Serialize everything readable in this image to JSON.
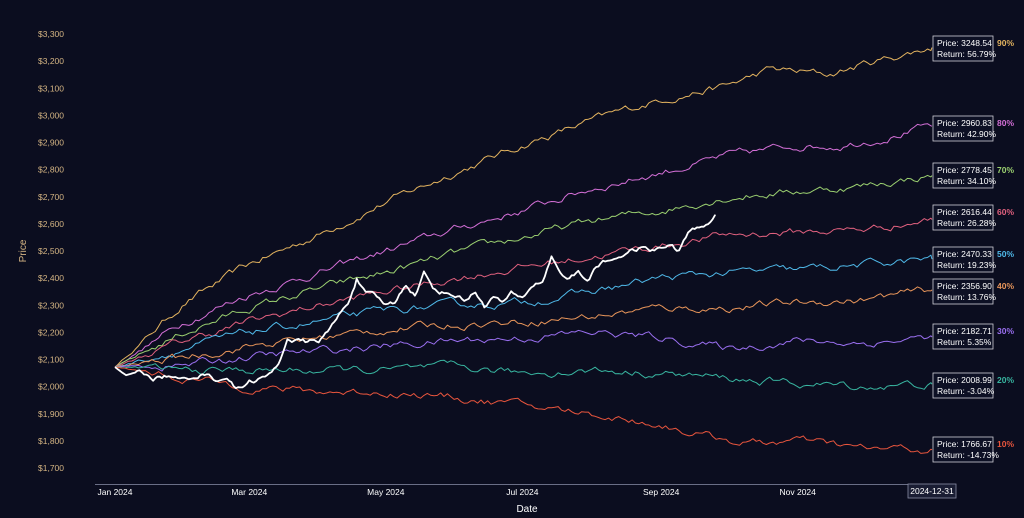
{
  "chart_data": {
    "type": "line",
    "title": "",
    "xlabel": "Date",
    "ylabel": "Price",
    "ylim": [
      1650,
      3330
    ],
    "y_ticks": [
      1700,
      1800,
      1900,
      2000,
      2100,
      2200,
      2300,
      2400,
      2500,
      2600,
      2700,
      2800,
      2900,
      3000,
      3100,
      3200,
      3300
    ],
    "y_tick_labels": [
      "$1,700",
      "$1,800",
      "$1,900",
      "$2,000",
      "$2,100",
      "$2,200",
      "$2,300",
      "$2,400",
      "$2,500",
      "$2,600",
      "$2,700",
      "$2,800",
      "$2,900",
      "$3,000",
      "$3,100",
      "$3,200",
      "$3,300"
    ],
    "x_range": [
      "2024-01-01",
      "2024-12-31"
    ],
    "x_ticks": [
      {
        "date": "2024-01-01",
        "label": "Jan 2024"
      },
      {
        "date": "2024-03-01",
        "label": "Mar 2024"
      },
      {
        "date": "2024-05-01",
        "label": "May 2024"
      },
      {
        "date": "2024-07-01",
        "label": "Jul 2024"
      },
      {
        "date": "2024-09-01",
        "label": "Sep 2024"
      },
      {
        "date": "2024-11-01",
        "label": "Nov 2024"
      }
    ],
    "end_date_label": "2024-12-31",
    "start_price": 2072,
    "end_date": "2024-12-31",
    "grid": false,
    "percentiles": [
      {
        "label": "90%",
        "color": "#e3b35f",
        "end_price": 3248.54,
        "price_text": "Price: 3248.54",
        "return_text": "Return: 56.79%",
        "waypoints": [
          [
            "2024-01-01",
            2072
          ],
          [
            "2024-02-01",
            2310
          ],
          [
            "2024-03-01",
            2450
          ],
          [
            "2024-04-01",
            2560
          ],
          [
            "2024-05-01",
            2680
          ],
          [
            "2024-06-01",
            2790
          ],
          [
            "2024-07-01",
            2890
          ],
          [
            "2024-08-01",
            2980
          ],
          [
            "2024-09-01",
            3060
          ],
          [
            "2024-10-01",
            3110
          ],
          [
            "2024-10-20",
            3170
          ],
          [
            "2024-11-15",
            3150
          ],
          [
            "2024-12-01",
            3190
          ],
          [
            "2024-12-31",
            3250
          ]
        ]
      },
      {
        "label": "80%",
        "color": "#d36fd6",
        "end_price": 2960.83,
        "price_text": "Price: 2960.83",
        "return_text": "Return: 42.90%",
        "waypoints": [
          [
            "2024-01-01",
            2072
          ],
          [
            "2024-02-01",
            2240
          ],
          [
            "2024-03-01",
            2340
          ],
          [
            "2024-04-01",
            2420
          ],
          [
            "2024-05-01",
            2500
          ],
          [
            "2024-06-01",
            2580
          ],
          [
            "2024-07-01",
            2650
          ],
          [
            "2024-08-01",
            2730
          ],
          [
            "2024-09-01",
            2790
          ],
          [
            "2024-10-01",
            2850
          ],
          [
            "2024-11-01",
            2890
          ],
          [
            "2024-11-20",
            2890
          ],
          [
            "2024-12-10",
            2920
          ],
          [
            "2024-12-31",
            2960
          ]
        ]
      },
      {
        "label": "70%",
        "color": "#9bd070",
        "end_price": 2778.45,
        "price_text": "Price: 2778.45",
        "return_text": "Return: 34.10%",
        "waypoints": [
          [
            "2024-01-01",
            2072
          ],
          [
            "2024-02-01",
            2200
          ],
          [
            "2024-03-01",
            2290
          ],
          [
            "2024-04-01",
            2360
          ],
          [
            "2024-05-01",
            2420
          ],
          [
            "2024-06-01",
            2490
          ],
          [
            "2024-07-01",
            2550
          ],
          [
            "2024-08-01",
            2610
          ],
          [
            "2024-09-01",
            2650
          ],
          [
            "2024-10-01",
            2700
          ],
          [
            "2024-11-01",
            2720
          ],
          [
            "2024-12-01",
            2740
          ],
          [
            "2024-12-31",
            2778
          ]
        ]
      },
      {
        "label": "60%",
        "color": "#e0607e",
        "end_price": 2616.44,
        "price_text": "Price: 2616.44",
        "return_text": "Return: 26.28%",
        "waypoints": [
          [
            "2024-01-01",
            2072
          ],
          [
            "2024-02-01",
            2170
          ],
          [
            "2024-03-01",
            2240
          ],
          [
            "2024-04-01",
            2300
          ],
          [
            "2024-05-01",
            2350
          ],
          [
            "2024-06-01",
            2400
          ],
          [
            "2024-07-01",
            2440
          ],
          [
            "2024-08-01",
            2480
          ],
          [
            "2024-09-01",
            2520
          ],
          [
            "2024-10-01",
            2560
          ],
          [
            "2024-11-01",
            2570
          ],
          [
            "2024-12-01",
            2580
          ],
          [
            "2024-12-31",
            2616
          ]
        ]
      },
      {
        "label": "50%",
        "color": "#4fb8e8",
        "end_price": 2470.33,
        "price_text": "Price: 2470.33",
        "return_text": "Return: 19.23%",
        "waypoints": [
          [
            "2024-01-01",
            2072
          ],
          [
            "2024-02-01",
            2140
          ],
          [
            "2024-03-01",
            2200
          ],
          [
            "2024-04-01",
            2240
          ],
          [
            "2024-05-01",
            2280
          ],
          [
            "2024-06-01",
            2300
          ],
          [
            "2024-07-01",
            2310
          ],
          [
            "2024-08-01",
            2350
          ],
          [
            "2024-09-01",
            2400
          ],
          [
            "2024-10-01",
            2420
          ],
          [
            "2024-11-01",
            2430
          ],
          [
            "2024-12-01",
            2450
          ],
          [
            "2024-12-31",
            2470
          ]
        ]
      },
      {
        "label": "40%",
        "color": "#e8955a",
        "end_price": 2356.9,
        "price_text": "Price: 2356.90",
        "return_text": "Return: 13.76%",
        "waypoints": [
          [
            "2024-01-01",
            2072
          ],
          [
            "2024-02-01",
            2110
          ],
          [
            "2024-03-01",
            2150
          ],
          [
            "2024-04-01",
            2180
          ],
          [
            "2024-05-01",
            2210
          ],
          [
            "2024-06-01",
            2230
          ],
          [
            "2024-07-01",
            2240
          ],
          [
            "2024-08-01",
            2260
          ],
          [
            "2024-09-01",
            2290
          ],
          [
            "2024-10-01",
            2290
          ],
          [
            "2024-11-01",
            2310
          ],
          [
            "2024-12-01",
            2320
          ],
          [
            "2024-12-31",
            2357
          ]
        ]
      },
      {
        "label": "30%",
        "color": "#9a6ff0",
        "end_price": 2182.71,
        "price_text": "Price: 2182.71",
        "return_text": "Return: 5.35%",
        "waypoints": [
          [
            "2024-01-01",
            2072
          ],
          [
            "2024-02-01",
            2080
          ],
          [
            "2024-03-01",
            2110
          ],
          [
            "2024-04-01",
            2130
          ],
          [
            "2024-05-01",
            2150
          ],
          [
            "2024-06-01",
            2170
          ],
          [
            "2024-07-01",
            2180
          ],
          [
            "2024-08-01",
            2200
          ],
          [
            "2024-09-01",
            2180
          ],
          [
            "2024-10-01",
            2140
          ],
          [
            "2024-11-01",
            2170
          ],
          [
            "2024-12-01",
            2160
          ],
          [
            "2024-12-31",
            2183
          ]
        ]
      },
      {
        "label": "20%",
        "color": "#38b5a0",
        "end_price": 2008.99,
        "price_text": "Price: 2008.99",
        "return_text": "Return: -3.04%",
        "waypoints": [
          [
            "2024-01-01",
            2072
          ],
          [
            "2024-02-01",
            2060
          ],
          [
            "2024-03-01",
            2060
          ],
          [
            "2024-04-01",
            2060
          ],
          [
            "2024-05-01",
            2060
          ],
          [
            "2024-06-01",
            2070
          ],
          [
            "2024-07-01",
            2050
          ],
          [
            "2024-08-01",
            2060
          ],
          [
            "2024-09-01",
            2050
          ],
          [
            "2024-10-01",
            2030
          ],
          [
            "2024-11-01",
            2010
          ],
          [
            "2024-12-01",
            2000
          ],
          [
            "2024-12-31",
            2009
          ]
        ]
      },
      {
        "label": "10%",
        "color": "#e8553d",
        "end_price": 1766.67,
        "price_text": "Price: 1766.67",
        "return_text": "Return: -14.73%",
        "waypoints": [
          [
            "2024-01-01",
            2072
          ],
          [
            "2024-02-01",
            2030
          ],
          [
            "2024-03-01",
            2000
          ],
          [
            "2024-04-01",
            1980
          ],
          [
            "2024-05-01",
            1980
          ],
          [
            "2024-06-01",
            1960
          ],
          [
            "2024-07-01",
            1930
          ],
          [
            "2024-08-01",
            1900
          ],
          [
            "2024-09-01",
            1860
          ],
          [
            "2024-09-20",
            1820
          ],
          [
            "2024-10-10",
            1790
          ],
          [
            "2024-11-01",
            1800
          ],
          [
            "2024-12-01",
            1770
          ],
          [
            "2024-12-31",
            1767
          ]
        ]
      }
    ],
    "actual": {
      "color": "#ffffff",
      "points": [
        [
          "2024-01-01",
          2072
        ],
        [
          "2024-01-06",
          2040
        ],
        [
          "2024-01-12",
          2060
        ],
        [
          "2024-01-18",
          2030
        ],
        [
          "2024-01-24",
          2040
        ],
        [
          "2024-01-30",
          2020
        ],
        [
          "2024-02-05",
          2040
        ],
        [
          "2024-02-10",
          2050
        ],
        [
          "2024-02-15",
          2025
        ],
        [
          "2024-02-20",
          2040
        ],
        [
          "2024-02-24",
          1990
        ],
        [
          "2024-03-01",
          2020
        ],
        [
          "2024-03-06",
          2030
        ],
        [
          "2024-03-10",
          2040
        ],
        [
          "2024-03-14",
          2080
        ],
        [
          "2024-03-18",
          2180
        ],
        [
          "2024-03-22",
          2170
        ],
        [
          "2024-03-27",
          2160
        ],
        [
          "2024-04-01",
          2170
        ],
        [
          "2024-04-05",
          2200
        ],
        [
          "2024-04-10",
          2260
        ],
        [
          "2024-04-14",
          2310
        ],
        [
          "2024-04-18",
          2400
        ],
        [
          "2024-04-22",
          2340
        ],
        [
          "2024-04-26",
          2330
        ],
        [
          "2024-05-01",
          2300
        ],
        [
          "2024-05-05",
          2310
        ],
        [
          "2024-05-10",
          2380
        ],
        [
          "2024-05-14",
          2340
        ],
        [
          "2024-05-18",
          2420
        ],
        [
          "2024-05-22",
          2360
        ],
        [
          "2024-05-26",
          2350
        ],
        [
          "2024-06-01",
          2340
        ],
        [
          "2024-06-05",
          2320
        ],
        [
          "2024-06-10",
          2350
        ],
        [
          "2024-06-14",
          2300
        ],
        [
          "2024-06-18",
          2330
        ],
        [
          "2024-06-22",
          2310
        ],
        [
          "2024-06-26",
          2340
        ],
        [
          "2024-07-01",
          2320
        ],
        [
          "2024-07-05",
          2370
        ],
        [
          "2024-07-10",
          2390
        ],
        [
          "2024-07-14",
          2480
        ],
        [
          "2024-07-18",
          2420
        ],
        [
          "2024-07-22",
          2400
        ],
        [
          "2024-07-26",
          2420
        ],
        [
          "2024-07-30",
          2390
        ],
        [
          "2024-08-03",
          2440
        ],
        [
          "2024-08-07",
          2460
        ],
        [
          "2024-08-11",
          2470
        ],
        [
          "2024-08-15",
          2490
        ],
        [
          "2024-08-19",
          2500
        ],
        [
          "2024-08-23",
          2510
        ],
        [
          "2024-08-27",
          2500
        ],
        [
          "2024-09-01",
          2510
        ],
        [
          "2024-09-05",
          2520
        ],
        [
          "2024-09-09",
          2500
        ],
        [
          "2024-09-13",
          2570
        ],
        [
          "2024-09-17",
          2580
        ],
        [
          "2024-09-20",
          2590
        ],
        [
          "2024-09-25",
          2630
        ]
      ]
    }
  }
}
